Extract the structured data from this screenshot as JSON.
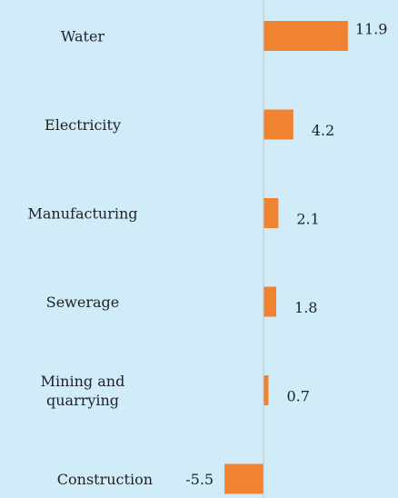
{
  "chart_data": {
    "type": "bar",
    "orientation": "horizontal",
    "categories": [
      [
        "Water"
      ],
      [
        "Electricity"
      ],
      [
        "Manufacturing"
      ],
      [
        "Sewerage"
      ],
      [
        "Mining and",
        "quarrying"
      ],
      [
        "Construction"
      ]
    ],
    "values": [
      11.9,
      4.2,
      2.1,
      1.8,
      0.7,
      -5.5
    ],
    "value_labels": [
      "11.9",
      "4.2",
      "2.1",
      "1.8",
      "0.7",
      "-5.5"
    ],
    "title": "",
    "xlabel": "",
    "ylabel": "",
    "grid": false,
    "colors": {
      "background": "#d0ecf8",
      "bar": "#f08232",
      "axis": "#bfc6cc",
      "text": "#222222"
    }
  }
}
